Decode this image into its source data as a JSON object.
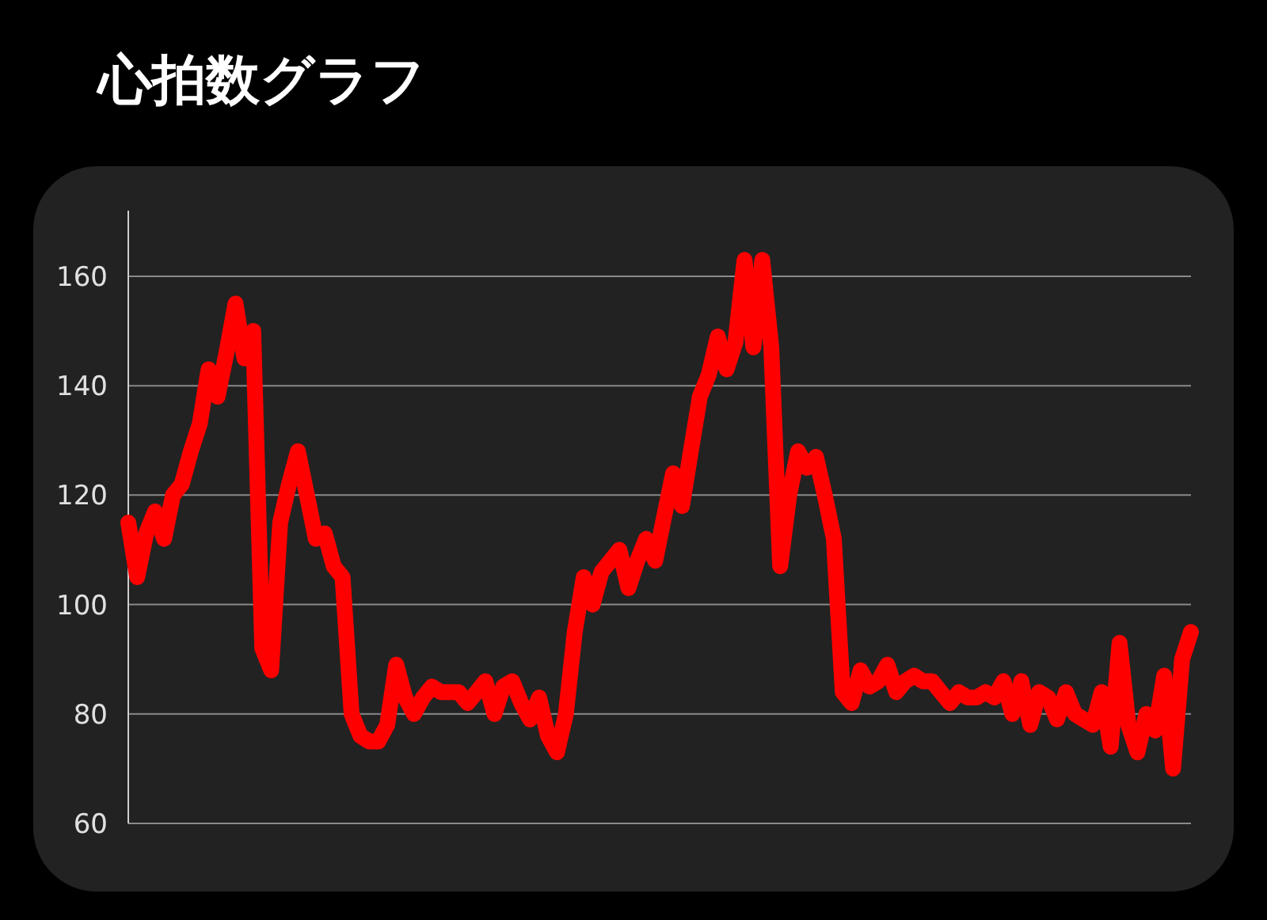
{
  "chart_data": {
    "type": "line",
    "title": "心拍数グラフ",
    "categories": [
      null,
      null,
      null,
      null,
      null,
      null,
      null,
      null,
      null,
      null,
      null,
      null,
      null,
      null,
      null,
      null,
      null,
      null,
      null,
      null,
      null,
      null,
      null,
      null,
      null,
      null,
      null,
      null,
      null,
      null,
      null,
      null,
      null,
      null,
      null,
      null,
      null,
      null,
      null,
      null,
      null,
      null,
      null,
      null,
      null,
      null,
      null,
      null,
      null,
      null,
      null,
      null,
      null,
      null,
      null,
      null,
      null,
      null,
      null,
      null,
      null,
      null,
      null,
      null,
      null,
      null,
      null,
      null,
      null,
      null,
      null,
      null,
      null,
      null,
      null,
      null,
      null,
      null,
      null,
      null,
      null,
      null,
      null,
      null,
      null,
      null,
      null,
      null,
      null,
      null,
      null,
      null,
      null,
      null,
      null,
      null,
      null,
      null,
      null,
      null,
      null,
      null,
      null,
      null,
      null,
      null,
      null,
      null,
      null,
      null,
      null,
      null,
      null,
      null,
      null,
      null,
      null,
      null,
      null,
      null
    ],
    "series": [
      {
        "color": "#ff0000",
        "values": [
          115,
          105,
          113,
          117,
          112,
          120,
          122,
          128,
          133,
          143,
          138,
          146,
          155,
          145,
          150,
          92,
          88,
          115,
          122,
          128,
          120,
          112,
          113,
          107,
          105,
          80,
          76,
          75,
          75,
          78,
          89,
          83,
          80,
          83,
          85,
          84,
          84,
          84,
          82,
          84,
          86,
          80,
          85,
          86,
          82,
          79,
          83,
          76,
          73,
          80,
          95,
          105,
          100,
          106,
          108,
          110,
          103,
          108,
          112,
          108,
          116,
          124,
          118,
          128,
          138,
          142,
          149,
          143,
          148,
          163,
          147,
          163,
          147,
          107,
          120,
          128,
          125,
          127,
          120,
          112,
          84,
          82,
          88,
          85,
          86,
          89,
          84,
          86,
          87,
          86,
          86,
          84,
          82,
          84,
          83,
          83,
          84,
          83,
          86,
          80,
          86,
          78,
          84,
          83,
          79,
          84,
          80,
          79,
          78,
          84,
          74,
          93,
          78,
          73,
          80,
          77,
          87,
          70,
          90,
          95
        ]
      }
    ],
    "ylim": [
      60,
      172
    ],
    "yticks": [
      60,
      80,
      100,
      120,
      140,
      160
    ],
    "grid": "y",
    "line_style": "solid"
  }
}
